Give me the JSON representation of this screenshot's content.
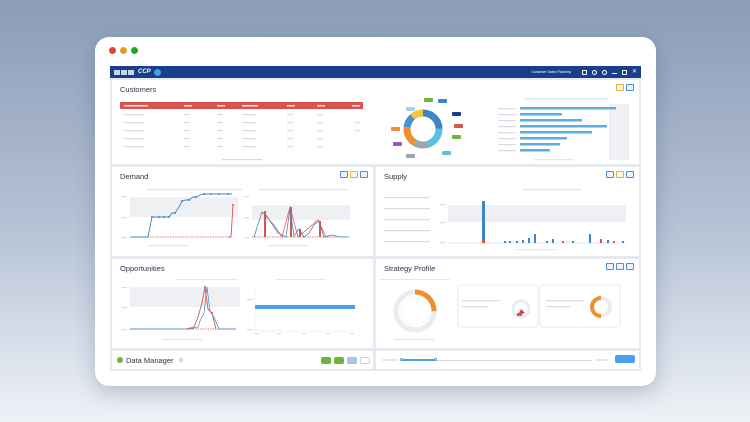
{
  "app": {
    "brand": "CCP",
    "user_label": "Customer Sales Planning",
    "traffic_colors": [
      "#e0443e",
      "#dea123",
      "#1aab29"
    ]
  },
  "panels": {
    "customers": {
      "title": "Customers"
    },
    "demand": {
      "title": "Demand"
    },
    "supply": {
      "title": "Supply"
    },
    "opportunities": {
      "title": "Opportunities"
    },
    "strategy": {
      "title": "Strategy Profile"
    },
    "data_manager": {
      "title": "Data Manager"
    }
  },
  "colors": {
    "accent": "#1a3f8a",
    "table_header": "#d9534f",
    "blue": "#3a86c8",
    "red": "#d9534f",
    "orange": "#ef8f2f",
    "green": "#6db33f"
  }
}
